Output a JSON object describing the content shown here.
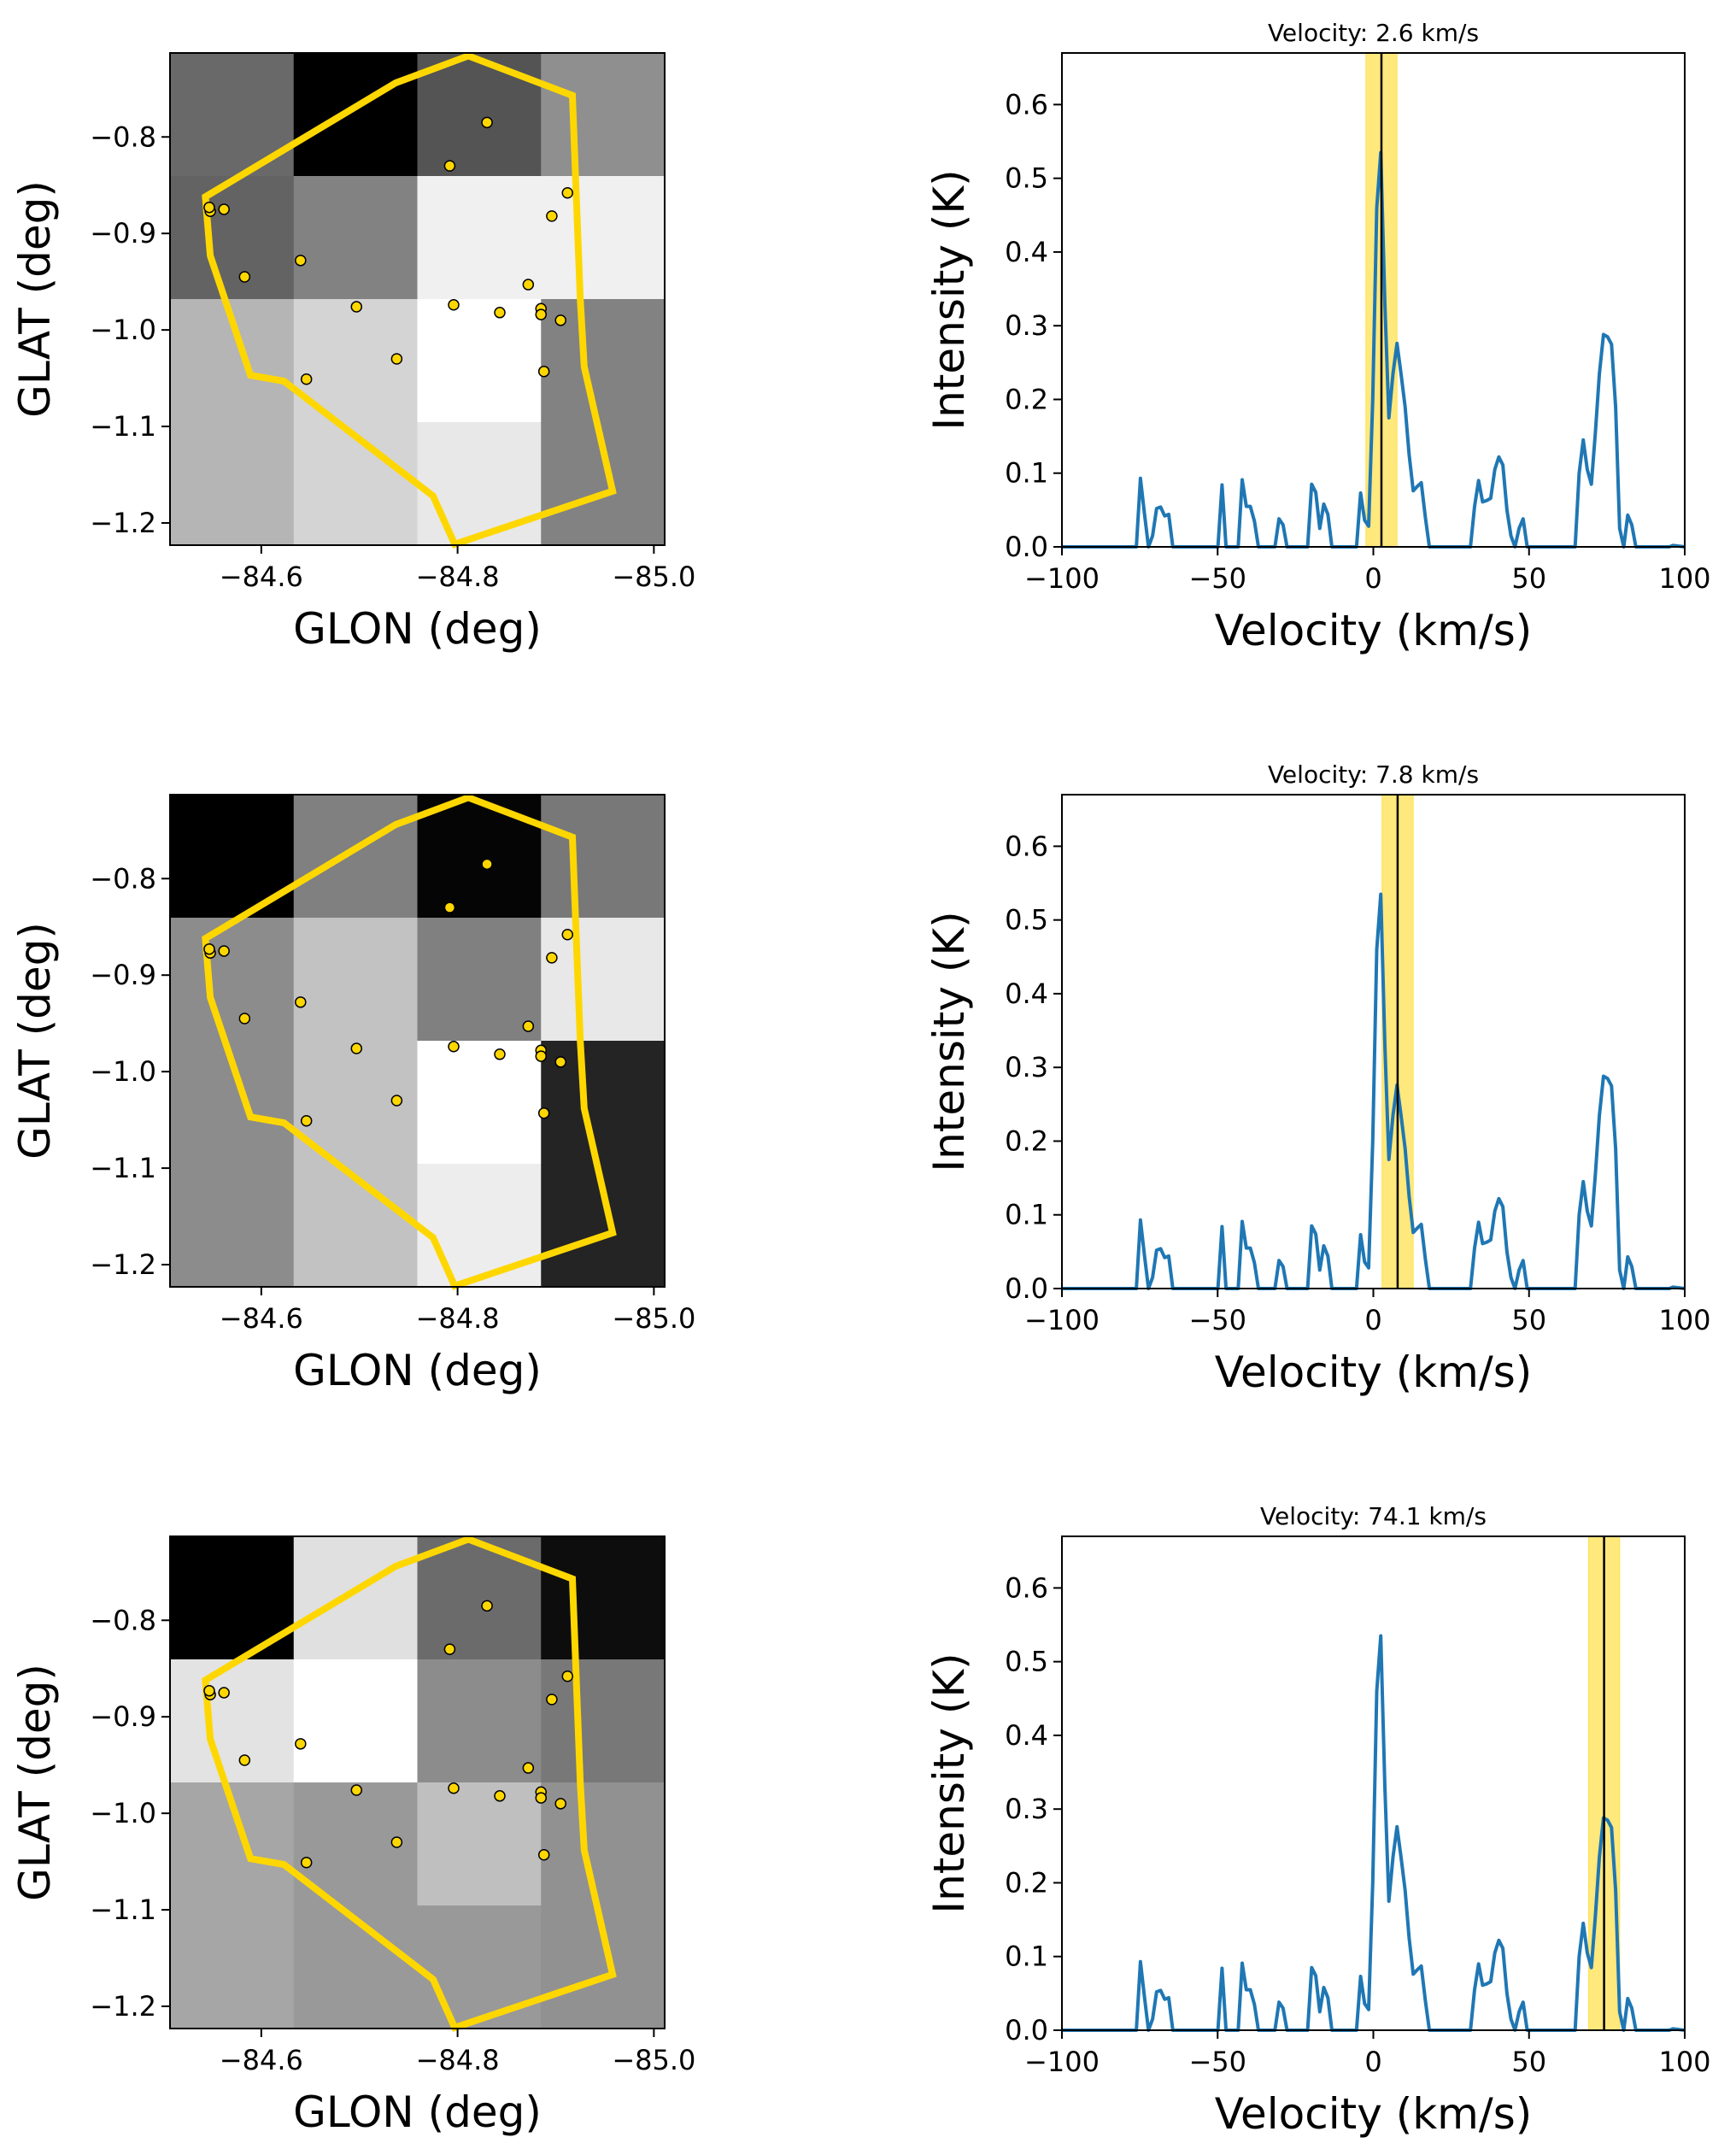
{
  "figure": {
    "rows": 3,
    "colors": {
      "polygon": "#FFD700",
      "source_fill": "#FFD700",
      "source_edge": "#000000",
      "spectrum_line": "#1f77b4",
      "velocity_band": "#FFE87C",
      "velocity_line": "#000000"
    }
  },
  "chart_data": [
    {
      "type": "heatmap",
      "panel": "map-1",
      "xlabel": "GLON (deg)",
      "ylabel": "GLAT (deg)",
      "xlim": [
        -84.507,
        -85.011
      ],
      "ylim": [
        -1.223,
        -0.713
      ],
      "xticks": [
        -84.6,
        -84.8,
        -85.0
      ],
      "xtick_labels": [
        "−84.6",
        "−84.8",
        "−85.0"
      ],
      "yticks": [
        -0.8,
        -0.9,
        -1.0,
        -1.1,
        -1.2
      ],
      "ytick_labels": [
        "−0.8",
        "−0.9",
        "−1.0",
        "−1.1",
        "−1.2"
      ],
      "colormap": "gray",
      "grid_values": [
        [
          0.41,
          0.0,
          0.33,
          0.56
        ],
        [
          0.39,
          0.51,
          0.94,
          0.94
        ],
        [
          0.71,
          0.83,
          1.0,
          0.51
        ],
        [
          0.71,
          0.83,
          0.91,
          0.51
        ]
      ]
    },
    {
      "type": "line",
      "panel": "spectrum-1",
      "title": "Velocity: 2.6 km/s",
      "xlabel": "Velocity (km/s)",
      "ylabel": "Intensity (K)",
      "xlim": [
        -100,
        100
      ],
      "ylim": [
        0,
        0.67
      ],
      "xticks": [
        -100,
        -50,
        0,
        50,
        100
      ],
      "xtick_labels": [
        "−100",
        "−50",
        "0",
        "50",
        "100"
      ],
      "yticks": [
        0.0,
        0.1,
        0.2,
        0.3,
        0.4,
        0.5,
        0.6
      ],
      "ytick_labels": [
        "0.0",
        "0.1",
        "0.2",
        "0.3",
        "0.4",
        "0.5",
        "0.6"
      ],
      "velocity_marker": 2.6,
      "velocity_band": [
        -2.4,
        7.6
      ]
    },
    {
      "type": "heatmap",
      "panel": "map-2",
      "xlabel": "GLON (deg)",
      "ylabel": "GLAT (deg)",
      "xlim": [
        -84.507,
        -85.011
      ],
      "ylim": [
        -1.223,
        -0.713
      ],
      "xticks": [
        -84.6,
        -84.8,
        -85.0
      ],
      "xtick_labels": [
        "−84.6",
        "−84.8",
        "−85.0"
      ],
      "yticks": [
        -0.8,
        -0.9,
        -1.0,
        -1.1,
        -1.2
      ],
      "ytick_labels": [
        "−0.8",
        "−0.9",
        "−1.0",
        "−1.1",
        "−1.2"
      ],
      "colormap": "gray",
      "grid_values": [
        [
          0.0,
          0.5,
          0.02,
          0.47
        ],
        [
          0.55,
          0.76,
          0.5,
          0.91
        ],
        [
          0.55,
          0.76,
          1.0,
          0.14
        ],
        [
          0.55,
          0.76,
          0.93,
          0.14
        ]
      ]
    },
    {
      "type": "line",
      "panel": "spectrum-2",
      "title": "Velocity: 7.8 km/s",
      "xlabel": "Velocity (km/s)",
      "ylabel": "Intensity (K)",
      "xlim": [
        -100,
        100
      ],
      "ylim": [
        0,
        0.67
      ],
      "xticks": [
        -100,
        -50,
        0,
        50,
        100
      ],
      "xtick_labels": [
        "−100",
        "−50",
        "0",
        "50",
        "100"
      ],
      "yticks": [
        0.0,
        0.1,
        0.2,
        0.3,
        0.4,
        0.5,
        0.6
      ],
      "ytick_labels": [
        "0.0",
        "0.1",
        "0.2",
        "0.3",
        "0.4",
        "0.5",
        "0.6"
      ],
      "velocity_marker": 7.8,
      "velocity_band": [
        2.8,
        12.8
      ]
    },
    {
      "type": "heatmap",
      "panel": "map-3",
      "xlabel": "GLON (deg)",
      "ylabel": "GLAT (deg)",
      "xlim": [
        -84.507,
        -85.011
      ],
      "ylim": [
        -1.223,
        -0.713
      ],
      "xticks": [
        -84.6,
        -84.8,
        -85.0
      ],
      "xtick_labels": [
        "−84.6",
        "−84.8",
        "−85.0"
      ],
      "yticks": [
        -0.8,
        -0.9,
        -1.0,
        -1.1,
        -1.2
      ],
      "ytick_labels": [
        "−0.8",
        "−0.9",
        "−1.0",
        "−1.1",
        "−1.2"
      ],
      "colormap": "gray",
      "grid_values": [
        [
          0.0,
          0.88,
          0.42,
          0.05
        ],
        [
          0.89,
          1.0,
          0.55,
          0.47
        ],
        [
          0.65,
          0.6,
          0.75,
          0.57
        ],
        [
          0.65,
          0.6,
          0.6,
          0.57
        ]
      ]
    },
    {
      "type": "line",
      "panel": "spectrum-3",
      "title": "Velocity: 74.1 km/s",
      "xlabel": "Velocity (km/s)",
      "ylabel": "Intensity (K)",
      "xlim": [
        -100,
        100
      ],
      "ylim": [
        0,
        0.67
      ],
      "xticks": [
        -100,
        -50,
        0,
        50,
        100
      ],
      "xtick_labels": [
        "−100",
        "−50",
        "0",
        "50",
        "100"
      ],
      "yticks": [
        0.0,
        0.1,
        0.2,
        0.3,
        0.4,
        0.5,
        0.6
      ],
      "ytick_labels": [
        "0.0",
        "0.1",
        "0.2",
        "0.3",
        "0.4",
        "0.5",
        "0.6"
      ],
      "velocity_marker": 74.1,
      "velocity_band": [
        69.1,
        79.1
      ]
    }
  ],
  "region_polygon": {
    "glon": [
      -84.543,
      -84.548,
      -84.589,
      -84.623,
      -84.775,
      -84.797,
      -84.958,
      -84.929,
      -84.925,
      -84.917,
      -84.811,
      -84.737
    ],
    "glat": [
      -0.862,
      -0.923,
      -1.047,
      -1.053,
      -1.172,
      -1.222,
      -1.167,
      -1.038,
      -0.968,
      -0.757,
      -0.716,
      -0.744
    ]
  },
  "sources": {
    "glon": [
      -84.83,
      -84.792,
      -84.562,
      -84.548,
      -84.547,
      -84.583,
      -84.64,
      -84.697,
      -84.738,
      -84.796,
      -84.843,
      -84.872,
      -84.896,
      -84.885,
      -84.885,
      -84.905,
      -84.912,
      -84.888,
      -84.646
    ],
    "glat": [
      -0.785,
      -0.83,
      -0.875,
      -0.877,
      -0.873,
      -0.945,
      -0.928,
      -0.976,
      -1.03,
      -0.974,
      -0.982,
      -0.953,
      -0.882,
      -0.978,
      -0.984,
      -0.99,
      -0.858,
      -1.043,
      -1.051
    ]
  },
  "spectrum": {
    "velocity": [
      -100,
      -82.6,
      -81.3,
      -76.1,
      -74.8,
      -73.5,
      -72.2,
      -70.9,
      -69.6,
      -68.3,
      -67.0,
      -65.7,
      -64.4,
      -63.1,
      -49.9,
      -48.6,
      -47.3,
      -46.0,
      -43.4,
      -42.1,
      -40.8,
      -39.5,
      -38.2,
      -36.9,
      -35.6,
      -31.6,
      -30.3,
      -29.0,
      -27.7,
      -21.1,
      -19.8,
      -18.5,
      -17.2,
      -15.9,
      -14.6,
      -13.3,
      -5.4,
      -4.1,
      -2.8,
      -1.5,
      -0.2,
      1.1,
      2.4,
      3.7,
      5.0,
      6.3,
      7.6,
      8.9,
      10.2,
      11.5,
      12.8,
      14.1,
      15.4,
      16.7,
      18.0,
      31.2,
      32.5,
      33.8,
      35.1,
      36.4,
      37.7,
      39.0,
      40.3,
      41.6,
      42.9,
      44.2,
      45.5,
      46.8,
      48.1,
      49.4,
      50.7,
      64.8,
      66.1,
      67.4,
      68.7,
      70.0,
      71.3,
      72.6,
      73.9,
      75.2,
      76.5,
      77.8,
      79.1,
      80.4,
      81.7,
      83.0,
      84.3,
      95.0,
      96.3,
      100
    ],
    "intensity": [
      0,
      0,
      0,
      0,
      0.093,
      0.045,
      0.0,
      0.015,
      0.052,
      0.054,
      0.042,
      0.044,
      0.0,
      0,
      0,
      0.084,
      0.0,
      0,
      0,
      0.091,
      0.055,
      0.055,
      0.035,
      0.0,
      0,
      0,
      0.038,
      0.03,
      0.0,
      0,
      0.085,
      0.074,
      0.025,
      0.058,
      0.044,
      0.0,
      0,
      0.073,
      0.036,
      0.028,
      0.2,
      0.46,
      0.535,
      0.33,
      0.175,
      0.235,
      0.276,
      0.235,
      0.19,
      0.125,
      0.076,
      0.082,
      0.087,
      0.04,
      0.0,
      0,
      0.055,
      0.09,
      0.061,
      0.063,
      0.066,
      0.105,
      0.122,
      0.111,
      0.05,
      0.015,
      0.0,
      0.025,
      0.038,
      0.0,
      0,
      0,
      0.1,
      0.145,
      0.105,
      0.085,
      0.155,
      0.235,
      0.288,
      0.285,
      0.275,
      0.19,
      0.025,
      0.0,
      0.043,
      0.03,
      0.0,
      0,
      0.002,
      0
    ]
  }
}
